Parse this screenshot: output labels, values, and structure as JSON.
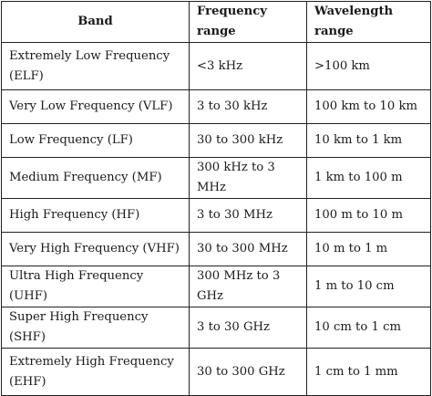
{
  "headers": {
    "band": "Band",
    "frequency": "Frequency range",
    "wavelength": "Wavelength range"
  },
  "rows": [
    {
      "band": "Extremely Low Frequency (ELF)",
      "frequency": "<3 kHz",
      "wavelength": ">100 km"
    },
    {
      "band": "Very Low Frequency (VLF)",
      "frequency": "3 to 30 kHz",
      "wavelength": "100 km to 10 km"
    },
    {
      "band": "Low Frequency (LF)",
      "frequency": "30 to 300 kHz",
      "wavelength": "10 km to 1 km"
    },
    {
      "band": "Medium Frequency (MF)",
      "frequency": "300 kHz to 3 MHz",
      "wavelength": "1 km to 100 m"
    },
    {
      "band": "High Frequency (HF)",
      "frequency": "3 to 30 MHz",
      "wavelength": "100 m to 10 m"
    },
    {
      "band": "Very High Frequency (VHF)",
      "frequency": "30 to 300 MHz",
      "wavelength": "10 m to 1 m"
    },
    {
      "band": "Ultra High Frequency (UHF)",
      "frequency": "300 MHz to 3 GHz",
      "wavelength": "1 m to 10 cm"
    },
    {
      "band": "Super High Frequency (SHF)",
      "frequency": "3 to 30 GHz",
      "wavelength": "10 cm to 1 cm"
    },
    {
      "band": "Extremely High Frequency (EHF)",
      "frequency": "30 to 300 GHz",
      "wavelength": "1 cm to 1 mm"
    }
  ]
}
